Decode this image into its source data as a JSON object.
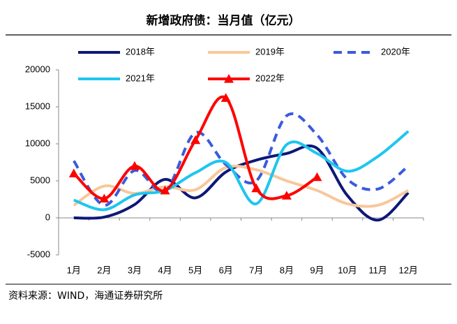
{
  "chart_data": {
    "type": "line",
    "title": "新增政府债：当月值（亿元）",
    "source": "资料来源：WIND，海通证券研究所",
    "categories": [
      "1月",
      "2月",
      "3月",
      "4月",
      "5月",
      "6月",
      "7月",
      "8月",
      "9月",
      "10月",
      "11月",
      "12月"
    ],
    "ylim": [
      -5000,
      20000
    ],
    "yticks": [
      -5000,
      0,
      5000,
      10000,
      15000,
      20000
    ],
    "series": [
      {
        "name": "2018年",
        "color": "#0d1877",
        "style": "solid",
        "values": [
          0,
          100,
          1800,
          5200,
          2700,
          6200,
          7800,
          8700,
          9400,
          3000,
          -300,
          3400
        ]
      },
      {
        "name": "2019年",
        "color": "#f8c79a",
        "style": "solid",
        "values": [
          1700,
          4300,
          3300,
          4200,
          3800,
          6800,
          6500,
          5000,
          3700,
          1900,
          1700,
          3700
        ]
      },
      {
        "name": "2020年",
        "color": "#3a5bdc",
        "style": "dashed",
        "values": [
          7700,
          1700,
          6400,
          3600,
          11500,
          7200,
          5000,
          13800,
          11200,
          5200,
          3900,
          7000
        ]
      },
      {
        "name": "2021年",
        "color": "#1ec6f0",
        "style": "solid",
        "values": [
          2400,
          1100,
          3100,
          3700,
          6100,
          7500,
          1900,
          9900,
          8700,
          6300,
          8300,
          11700
        ]
      },
      {
        "name": "2022年",
        "color": "#ff0000",
        "style": "solid",
        "marker": "triangle",
        "values": [
          6000,
          2600,
          7000,
          3700,
          10500,
          16200,
          4000,
          3000,
          5500,
          null,
          null,
          null
        ]
      }
    ]
  }
}
